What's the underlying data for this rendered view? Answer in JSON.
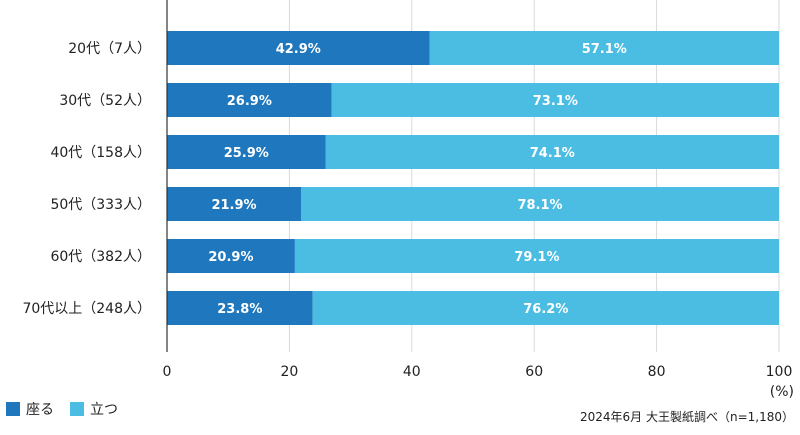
{
  "chart_data": {
    "type": "bar",
    "orientation": "horizontal",
    "stacked": true,
    "categories": [
      "20代（7人）",
      "30代（52人）",
      "40代（158人）",
      "50代（333人）",
      "60代（382人）",
      "70代以上（248人）"
    ],
    "series": [
      {
        "name": "座る",
        "color": "#1f77bd",
        "values": [
          42.9,
          26.9,
          25.9,
          21.9,
          20.9,
          23.8
        ]
      },
      {
        "name": "立つ",
        "color": "#4bbde3",
        "values": [
          57.1,
          73.1,
          74.1,
          78.1,
          79.1,
          76.2
        ]
      }
    ],
    "data_labels": [
      [
        "42.9%",
        "26.9%",
        "25.9%",
        "21.9%",
        "20.9%",
        "23.8%"
      ],
      [
        "57.1%",
        "73.1%",
        "74.1%",
        "78.1%",
        "79.1%",
        "76.2%"
      ]
    ],
    "xlim": [
      0,
      100
    ],
    "xticks": [
      0,
      20,
      40,
      60,
      80,
      100
    ],
    "xtick_labels": [
      "0",
      "20",
      "40",
      "60",
      "80",
      "100"
    ],
    "grid": true,
    "legend_position": "bottom-left"
  },
  "unit_label": "(%)",
  "source_note": "2024年6月 大王製紙調べ（n=1,180）"
}
